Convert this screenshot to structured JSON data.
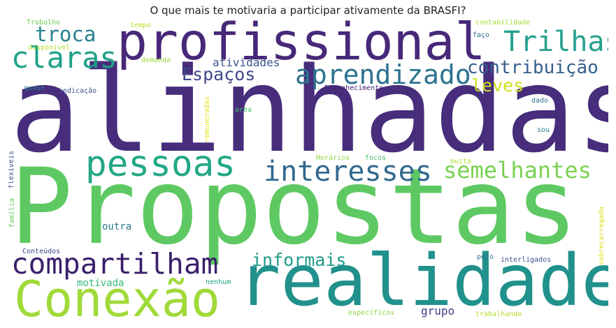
{
  "title": "O que mais te motivaria a participar ativamente da BRASFI?",
  "words": [
    {
      "text": "Propostas",
      "color": "#5ec962"
    },
    {
      "text": "alinhadas",
      "color": "#472d7b"
    },
    {
      "text": "realidade",
      "color": "#21918c"
    },
    {
      "text": "profissional",
      "color": "#482878"
    },
    {
      "text": "Conexão",
      "color": "#a0da39"
    },
    {
      "text": "compartilham",
      "color": "#3b1f6b"
    },
    {
      "text": "pessoas",
      "color": "#22a884"
    },
    {
      "text": "interesses",
      "color": "#31688e"
    },
    {
      "text": "semelhantes",
      "color": "#7ad151"
    },
    {
      "text": "aprendizado",
      "color": "#2c728e"
    },
    {
      "text": "claras",
      "color": "#1fa187"
    },
    {
      "text": "Trilhas",
      "color": "#25a18e"
    },
    {
      "text": "troca",
      "color": "#27808e"
    },
    {
      "text": "contribuição",
      "color": "#355f8d"
    },
    {
      "text": "Espaços",
      "color": "#3e4989"
    },
    {
      "text": "informais",
      "color": "#1f9a8a"
    },
    {
      "text": "leves",
      "color": "#d0e11c"
    },
    {
      "text": "atividades",
      "color": "#3a548c"
    },
    {
      "text": "motivada",
      "color": "#35b779"
    },
    {
      "text": "outra",
      "color": "#2a788e"
    },
    {
      "text": "grupo",
      "color": "#443983"
    },
    {
      "text": "Trabalho",
      "color": "#6ece58"
    },
    {
      "text": "tempo",
      "color": "#bddf26"
    },
    {
      "text": "disponível",
      "color": "#b5de2b"
    },
    {
      "text": "demanda",
      "color": "#9bd93c"
    },
    {
      "text": "quase",
      "color": "#287c8e"
    },
    {
      "text": "indicação",
      "color": "#3b528b"
    },
    {
      "text": "Reconhecimento",
      "color": "#481f70"
    },
    {
      "text": "faço",
      "color": "#2d708e"
    },
    {
      "text": "contabilidade",
      "color": "#a5db36"
    },
    {
      "text": "dado",
      "color": "#2c718e"
    },
    {
      "text": "sou",
      "color": "#26828e"
    },
    {
      "text": "remuneradas",
      "color": "#e5e419"
    },
    {
      "text": "area",
      "color": "#40bd72"
    },
    {
      "text": "Horários",
      "color": "#90d743"
    },
    {
      "text": "focos",
      "color": "#4ac16d"
    },
    {
      "text": "muita",
      "color": "#addc30"
    },
    {
      "text": "flexíveis",
      "color": "#3e4a89"
    },
    {
      "text": "família",
      "color": "#63cb5f"
    },
    {
      "text": "Conteúdos",
      "color": "#3f4788"
    },
    {
      "text": "pelo",
      "color": "#2e6e8e"
    },
    {
      "text": "interligados",
      "color": "#3d4e8a"
    },
    {
      "text": "sobrecarregada",
      "color": "#d8e219"
    },
    {
      "text": "nenhum",
      "color": "#20a386"
    },
    {
      "text": "específicos",
      "color": "#8ed645"
    },
    {
      "text": "trabalhando",
      "color": "#b2dd2d"
    }
  ]
}
